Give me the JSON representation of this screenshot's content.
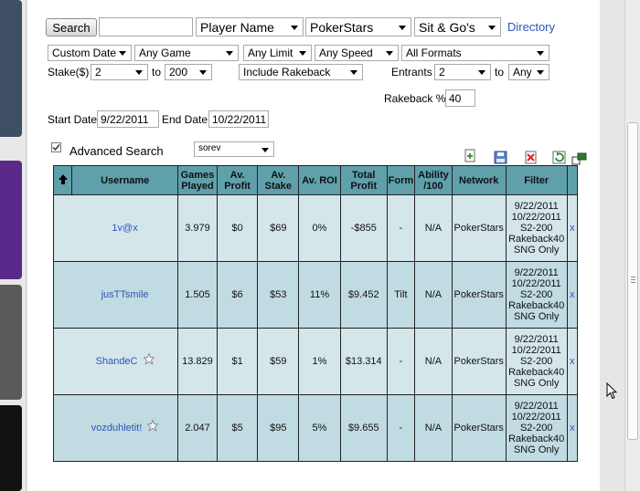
{
  "toolbar": {
    "search_label": "Search",
    "search_value": "",
    "field_select": "Player Name",
    "site_select": "PokerStars",
    "game_type_select": "Sit & Go's",
    "directory_link": "Directory"
  },
  "filters": {
    "date_select": "Custom Date",
    "game_select": "Any Game",
    "limit_select": "Any Limit",
    "speed_select": "Any Speed",
    "format_select": "All Formats",
    "stake_label": "Stake($)",
    "stake_min": "2",
    "to_label_1": "to",
    "stake_max": "200",
    "rakeback_select": "Include Rakeback",
    "entrants_label": "Entrants",
    "entrants_min": "2",
    "to_label_2": "to",
    "entrants_max": "Any",
    "rakeback_pct_label": "Rakeback %",
    "rakeback_pct_value": "40",
    "start_date_label": "Start Date:",
    "start_date_value": "9/22/2011",
    "end_date_label": "End Date:",
    "end_date_value": "10/22/2011",
    "advanced_label": "Advanced Search",
    "advanced_checked": true,
    "sort_select": "sorev"
  },
  "table": {
    "headers": {
      "username": "Username",
      "games_played": "Games Played",
      "av_profit": "Av. Profit",
      "av_stake": "Av. Stake",
      "av_roi": "Av. ROI",
      "total_profit": "Total Profit",
      "form": "Form",
      "ability": "Ability /100",
      "network": "Network",
      "filter": "Filter"
    },
    "rows": [
      {
        "username": "1v@x",
        "games_played": "3.979",
        "av_profit": "$0",
        "av_stake": "$69",
        "av_roi": "0%",
        "total_profit": "-$855",
        "form": "-",
        "ability": "N/A",
        "network": "PokerStars",
        "filter": [
          "9/22/2011",
          "10/22/2011",
          "S2-200",
          "Rakeback40",
          "SNG Only"
        ],
        "remove": "x"
      },
      {
        "username": "jusTTsmile",
        "games_played": "1.505",
        "av_profit": "$6",
        "av_stake": "$53",
        "av_roi": "11%",
        "total_profit": "$9.452",
        "form": "Tilt",
        "ability": "N/A",
        "network": "PokerStars",
        "filter": [
          "9/22/2011",
          "10/22/2011",
          "S2-200",
          "Rakeback40",
          "SNG Only"
        ],
        "remove": "x"
      },
      {
        "username": "ShandeC",
        "games_played": "13.829",
        "av_profit": "$1",
        "av_stake": "$59",
        "av_roi": "1%",
        "total_profit": "$13.314",
        "form": "-",
        "ability": "N/A",
        "network": "PokerStars",
        "filter": [
          "9/22/2011",
          "10/22/2011",
          "S2-200",
          "Rakeback40",
          "SNG Only"
        ],
        "remove": "x"
      },
      {
        "username": "vozduhletit!",
        "games_played": "2.047",
        "av_profit": "$5",
        "av_stake": "$95",
        "av_roi": "5%",
        "total_profit": "$9.655",
        "form": "-",
        "ability": "N/A",
        "network": "PokerStars",
        "filter": [
          "9/22/2011",
          "10/22/2011",
          "S2-200",
          "Rakeback40",
          "SNG Only"
        ],
        "remove": "x"
      }
    ]
  }
}
